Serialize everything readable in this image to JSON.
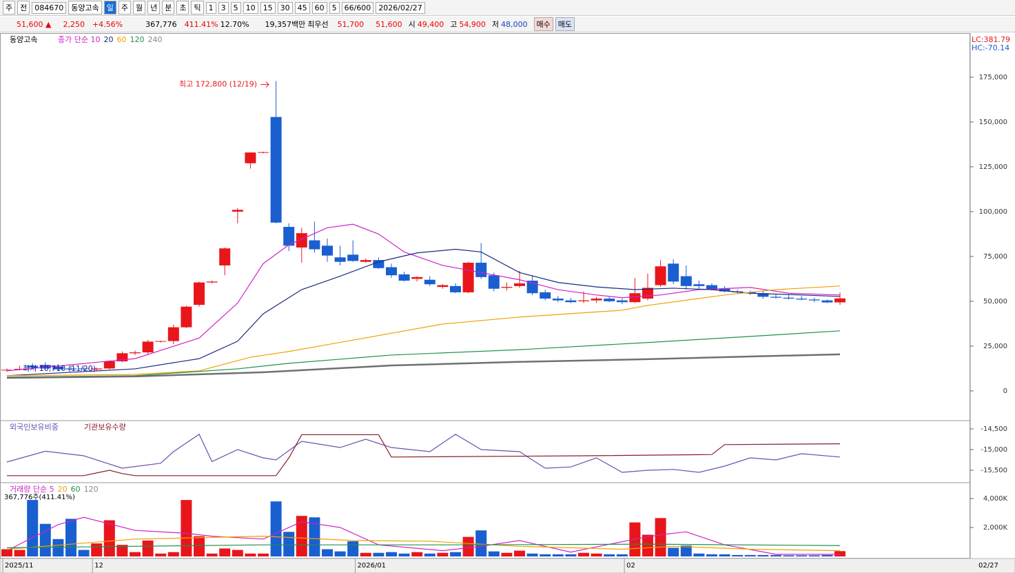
{
  "toolbar": {
    "items": [
      "주",
      "전",
      "084670",
      "동양고속",
      "일",
      "주",
      "월",
      "년",
      "분",
      "초",
      "틱",
      "1",
      "3",
      "5",
      "10",
      "15",
      "30",
      "45",
      "60",
      "5",
      "66/600",
      "2026/02/27"
    ]
  },
  "info": {
    "price": "51,600 ▲",
    "change": "2,250",
    "rate": "+4.56%",
    "volume": "367,776",
    "vol_ratio": "411.41%",
    "turnover": "12.70%",
    "amount": "19,357백만",
    "best_label": "최우선",
    "ask": "51,700",
    "bid": "51,600",
    "open_label": "시",
    "open": "49,400",
    "high_label": "고",
    "high": "54,900",
    "low_label": "저",
    "low": "48,000",
    "buy": "매수",
    "sell": "매도"
  },
  "price_panel": {
    "name": "동양고속",
    "legend": [
      "종가 단순 10",
      "20",
      "60",
      "120",
      "240"
    ],
    "lc": "LC:381.79",
    "hc": "HC:-70.14",
    "max_note": "최고 172,800 (12/19)",
    "min_note": "최저 10,710 (11/20)",
    "ylim": [
      -15800,
      199600
    ],
    "yticks": [
      {
        "value": 175000,
        "label": "175,000"
      },
      {
        "value": 150000,
        "label": "150,000"
      },
      {
        "value": 125000,
        "label": "125,000"
      },
      {
        "value": 100000,
        "label": "100,000"
      },
      {
        "value": 75000,
        "label": "75,000"
      },
      {
        "value": 50000,
        "label": "50,000"
      },
      {
        "value": 25000,
        "label": "25,000"
      },
      0
    ],
    "candles": [
      [
        11500,
        12500,
        10710,
        11800
      ],
      [
        12000,
        14000,
        11500,
        12300
      ],
      [
        14000,
        15500,
        12500,
        13000
      ],
      [
        14500,
        16000,
        12000,
        12500
      ],
      [
        13500,
        15000,
        11500,
        12000
      ],
      [
        12500,
        14000,
        11500,
        12000
      ],
      [
        12500,
        13500,
        11500,
        12200
      ],
      [
        12000,
        13000,
        11000,
        12500
      ],
      [
        12500,
        17000,
        12000,
        16500
      ],
      [
        16500,
        22000,
        16000,
        21000
      ],
      [
        21000,
        22500,
        20000,
        21500
      ],
      [
        21500,
        28500,
        20500,
        27500
      ],
      [
        27500,
        28000,
        27000,
        27800
      ],
      [
        27800,
        37000,
        26000,
        35500
      ],
      [
        35500,
        47500,
        35000,
        47000
      ],
      [
        48000,
        61000,
        47000,
        60500
      ],
      [
        60500,
        61500,
        60000,
        61000
      ],
      [
        70000,
        80000,
        64500,
        79500
      ],
      [
        100000,
        102000,
        93500,
        101000
      ],
      [
        127000,
        133000,
        124000,
        133000
      ],
      [
        133000,
        133500,
        132500,
        133200
      ],
      [
        152800,
        172800,
        93500,
        93900
      ],
      [
        91500,
        93500,
        78000,
        81000
      ],
      [
        80000,
        91000,
        71500,
        88000
      ],
      [
        84000,
        94500,
        77000,
        79000
      ],
      [
        81000,
        85000,
        72000,
        75500
      ],
      [
        74500,
        81000,
        70000,
        72000
      ],
      [
        76000,
        84000,
        72000,
        72500
      ],
      [
        72000,
        74000,
        71500,
        73000
      ],
      [
        73000,
        74500,
        68000,
        68500
      ],
      [
        69000,
        71000,
        63000,
        64500
      ],
      [
        65000,
        66500,
        61000,
        61500
      ],
      [
        62500,
        64000,
        61000,
        63500
      ],
      [
        62000,
        64000,
        58500,
        59500
      ],
      [
        58000,
        59500,
        57000,
        59000
      ],
      [
        58500,
        60000,
        54500,
        55000
      ],
      [
        55000,
        72000,
        54500,
        71500
      ],
      [
        71500,
        82500,
        62500,
        63500
      ],
      [
        64500,
        66000,
        55500,
        57000
      ],
      [
        57500,
        60500,
        56000,
        58000
      ],
      [
        58500,
        67000,
        57500,
        60000
      ],
      [
        61500,
        64500,
        53500,
        54500
      ],
      [
        55000,
        56500,
        50500,
        51500
      ],
      [
        51500,
        53000,
        49500,
        50500
      ],
      [
        50500,
        52000,
        49000,
        49500
      ],
      [
        50000,
        55500,
        49000,
        50500
      ],
      [
        50500,
        52500,
        49000,
        51500
      ],
      [
        51500,
        52500,
        49500,
        50000
      ],
      [
        50500,
        51500,
        48500,
        49500
      ],
      [
        49500,
        63000,
        49000,
        54500
      ],
      [
        51500,
        65500,
        50500,
        57500
      ],
      [
        59000,
        73000,
        58000,
        69500
      ],
      [
        71000,
        73500,
        59500,
        61000
      ],
      [
        64000,
        70000,
        56500,
        58500
      ],
      [
        59500,
        61500,
        57000,
        58500
      ],
      [
        59000,
        60000,
        56000,
        56500
      ],
      [
        57000,
        58500,
        55000,
        55500
      ],
      [
        55500,
        56500,
        54000,
        55000
      ],
      [
        55000,
        56000,
        53500,
        54500
      ],
      [
        54500,
        56000,
        51500,
        52500
      ],
      [
        52500,
        54000,
        51500,
        52000
      ],
      [
        52000,
        53500,
        51000,
        51500
      ],
      [
        51500,
        53000,
        50500,
        51000
      ],
      [
        51000,
        52000,
        49500,
        50500
      ],
      [
        50500,
        51000,
        49000,
        49350
      ],
      [
        49400,
        54900,
        48000,
        51600
      ]
    ],
    "series": [
      {
        "name": "10",
        "color": "#d020c8",
        "x": [
          0,
          10,
          15,
          18,
          20,
          22,
          25,
          27,
          29,
          31,
          34,
          37,
          40,
          43,
          46,
          48,
          51,
          54,
          58,
          61,
          65
        ],
        "values": [
          11200,
          18000,
          29500,
          49000,
          71000,
          81500,
          91000,
          93000,
          87500,
          77500,
          70000,
          66000,
          62000,
          56500,
          53500,
          52000,
          53500,
          56500,
          57700,
          54500,
          53500
        ]
      },
      {
        "name": "20",
        "color": "#1a2a80",
        "x": [
          0,
          10,
          15,
          18,
          20,
          23,
          26,
          29,
          32,
          35,
          37,
          40,
          43,
          46,
          49,
          52,
          55,
          58,
          62,
          65
        ],
        "values": [
          8500,
          12300,
          18000,
          27700,
          43000,
          56500,
          64000,
          72000,
          77000,
          79000,
          77500,
          66000,
          60500,
          58000,
          56500,
          57300,
          56500,
          54500,
          53500,
          52700
        ]
      },
      {
        "name": "60",
        "color": "#f0a000",
        "x": [
          0,
          10,
          15,
          19,
          22,
          28,
          34,
          40,
          48,
          50,
          56,
          60,
          65
        ],
        "values": [
          8500,
          9200,
          11200,
          18800,
          22000,
          29600,
          37300,
          41200,
          45000,
          47700,
          53500,
          56500,
          58500
        ]
      },
      {
        "name": "120",
        "color": "#20904a",
        "x": [
          0,
          10,
          18,
          22,
          30,
          40,
          50,
          58,
          65
        ],
        "values": [
          7700,
          8500,
          12300,
          15400,
          20000,
          23000,
          27000,
          30400,
          33500
        ]
      },
      {
        "name": "240",
        "color": "#707070",
        "x": [
          0,
          10,
          20,
          30,
          40,
          50,
          58,
          65
        ],
        "values": [
          7300,
          8100,
          10400,
          14200,
          16200,
          17700,
          19200,
          20400
        ]
      }
    ]
  },
  "holding_panel": {
    "legend": [
      "외국인보유비중",
      "기관보유수량"
    ],
    "ylim": [
      -15800,
      -14333
    ],
    "yticks": [
      {
        "value": -14500,
        "label": "-14,500"
      },
      {
        "value": -15000,
        "label": "-15,000"
      },
      {
        "value": -15500,
        "label": "-15,500"
      }
    ],
    "series": [
      {
        "name": "외국인보유비중",
        "color": "#6a4fb0",
        "x": [
          0,
          3,
          6,
          9,
          12,
          13,
          15,
          16,
          18,
          20,
          21,
          23,
          26,
          28,
          30,
          33,
          35,
          37,
          40,
          42,
          44,
          46,
          48,
          50,
          52,
          54,
          56,
          58,
          60,
          62,
          65
        ],
        "values": [
          -15300,
          -15040,
          -15150,
          -15450,
          -15330,
          -15050,
          -14630,
          -15290,
          -15000,
          -15200,
          -15250,
          -14800,
          -14950,
          -14750,
          -14950,
          -15050,
          -14630,
          -15000,
          -15050,
          -15450,
          -15420,
          -15200,
          -15550,
          -15500,
          -15480,
          -15550,
          -15400,
          -15200,
          -15250,
          -15100,
          -15180
        ]
      },
      {
        "name": "기관보유수량",
        "color": "#8a1a2a",
        "x": [
          0,
          6,
          8,
          9,
          10,
          21,
          22,
          23,
          29,
          30,
          45,
          55,
          56,
          65
        ],
        "values": [
          -15630,
          -15630,
          -15500,
          -15580,
          -15630,
          -15630,
          -15200,
          -14640,
          -14640,
          -15180,
          -15150,
          -15120,
          -14880,
          -14860
        ]
      }
    ]
  },
  "volume_panel": {
    "legend": [
      "거래량 단순 5",
      "20",
      "60",
      "120"
    ],
    "note": "367,776주(411.41%)",
    "ylim": [
      0,
      5000
    ],
    "yticks": [
      {
        "value": 4000,
        "label": "4,000K"
      },
      {
        "value": 2000,
        "label": "2,000K"
      }
    ],
    "values": [
      500,
      450,
      3900,
      2250,
      1200,
      2600,
      450,
      900,
      2500,
      800,
      300,
      1100,
      200,
      300,
      3900,
      1400,
      200,
      550,
      450,
      200,
      200,
      3800,
      1700,
      2800,
      2700,
      500,
      350,
      1050,
      250,
      250,
      300,
      200,
      300,
      200,
      250,
      300,
      1350,
      1800,
      350,
      250,
      400,
      200,
      150,
      150,
      150,
      250,
      200,
      150,
      150,
      2350,
      1500,
      2650,
      600,
      750,
      200,
      150,
      150,
      100,
      100,
      100,
      100,
      80,
      80,
      80,
      100,
      368
    ],
    "series": [
      {
        "name": "5",
        "color": "#d020c8",
        "x": [
          0,
          4,
          6,
          10,
          14,
          16,
          20,
          23,
          26,
          29,
          34,
          37,
          40,
          44,
          49,
          51,
          53,
          56,
          60,
          65
        ],
        "values": [
          400,
          2200,
          2700,
          1800,
          1600,
          1400,
          1200,
          2400,
          2000,
          800,
          400,
          700,
          1100,
          300,
          1200,
          1500,
          1700,
          800,
          150,
          150
        ]
      },
      {
        "name": "20",
        "color": "#f0a000",
        "x": [
          0,
          10,
          20,
          27,
          33,
          40,
          48,
          52,
          58,
          65
        ],
        "values": [
          500,
          1200,
          1400,
          1100,
          1050,
          700,
          500,
          700,
          500,
          400
        ]
      },
      {
        "name": "60",
        "color": "#20904a",
        "x": [
          0,
          20,
          35,
          50,
          65
        ],
        "values": [
          600,
          800,
          800,
          850,
          750
        ]
      }
    ]
  },
  "dates": [
    {
      "index": 0,
      "label": "2025/11"
    },
    {
      "index": 7,
      "label": "12"
    },
    {
      "index": 27.5,
      "label": "2026/01"
    },
    {
      "index": 48.5,
      "label": "02"
    }
  ],
  "last_date": "02/27"
}
